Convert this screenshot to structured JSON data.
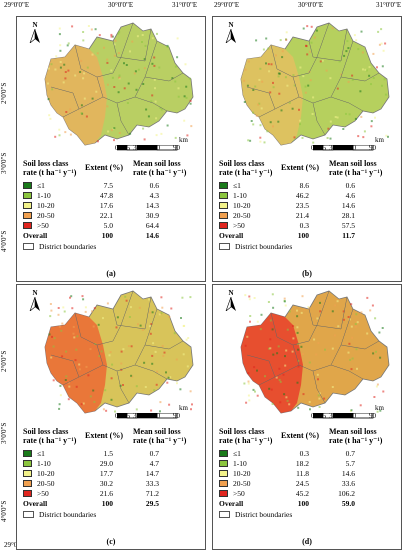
{
  "axes": {
    "x_ticks": [
      "29°0'0\"E",
      "30°0'0\"E",
      "31°0'0\"E",
      "29°0'0\"E",
      "30°0'0\"E",
      "31°0'0\"E"
    ],
    "y_ticks_top": [
      "2°0'0\"S",
      "3°0'0\"S",
      "4°0'0\"S"
    ],
    "y_ticks_bottom": [
      "2°0'0\"S",
      "3°0'0\"S",
      "4°0'0\"S"
    ]
  },
  "legend_common": {
    "class_header_1": "Soil loss class",
    "class_header_2": "rate (t ha⁻¹ y⁻¹)",
    "extent_header": "Extent (%)",
    "mean_header_1": "Mean soil loss",
    "mean_header_2": "rate (t ha⁻¹ y⁻¹)",
    "overall_label": "Overall",
    "district_label": "District boundaries",
    "north_label": "N",
    "scale_unit": "km",
    "scale_ticks": [
      "0",
      "15",
      "30",
      "60",
      "90"
    ]
  },
  "class_colors": [
    "#1a7a1a",
    "#8cc63f",
    "#f2f28a",
    "#f0a050",
    "#e0261f"
  ],
  "classes": [
    "≤1",
    "1-10",
    "10-20",
    "20-50",
    ">50"
  ],
  "panels": [
    {
      "caption": "(a)",
      "extent": [
        "7.5",
        "47.8",
        "17.6",
        "22.1",
        "5.0"
      ],
      "mean": [
        "0.6",
        "4.3",
        "14.3",
        "30.9",
        "64.4"
      ],
      "overall_extent": "100",
      "overall_mean": "14.6",
      "fill": "#b9cf63",
      "west": "#e7b25c"
    },
    {
      "caption": "(b)",
      "extent": [
        "8.6",
        "46.2",
        "23.5",
        "21.4",
        "0.3"
      ],
      "mean": [
        "0.6",
        "4.6",
        "14.6",
        "28.1",
        "57.5"
      ],
      "overall_extent": "100",
      "overall_mean": "11.7",
      "fill": "#b6d05e",
      "west": "#e4c060"
    },
    {
      "caption": "(c)",
      "extent": [
        "1.5",
        "29.0",
        "17.7",
        "30.2",
        "21.6"
      ],
      "mean": [
        "0.7",
        "4.7",
        "14.7",
        "33.3",
        "71.2"
      ],
      "overall_extent": "100",
      "overall_mean": "29.5",
      "fill": "#d8c45a",
      "west": "#ec6a34"
    },
    {
      "caption": "(d)",
      "extent": [
        "0.3",
        "18.2",
        "11.8",
        "24.5",
        "45.2"
      ],
      "mean": [
        "0.7",
        "5.7",
        "14.6",
        "33.6",
        "106.2"
      ],
      "overall_extent": "100",
      "overall_mean": "59.0",
      "fill": "#e0a64a",
      "west": "#e8402a"
    }
  ]
}
